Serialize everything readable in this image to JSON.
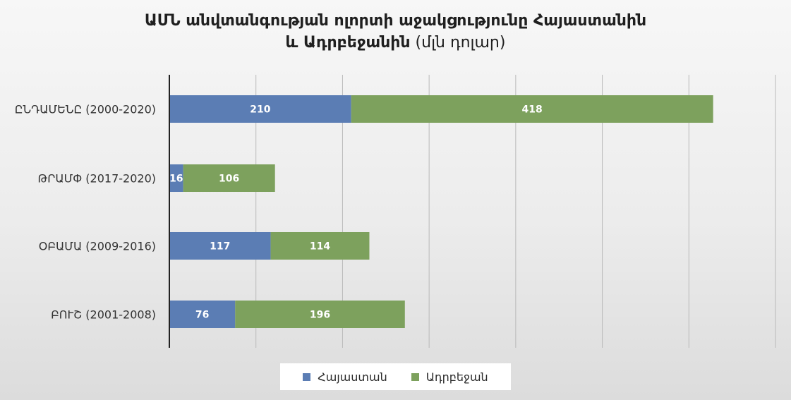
{
  "chart_data": {
    "type": "bar",
    "orientation": "horizontal",
    "stacked": true,
    "title": {
      "line1": "ԱՄՆ անվտանգության ոլորտի աջակցությունը Հայաստանին",
      "line2_bold": "և Ադրբեջանին",
      "line2_unit": "(մլն դոլար)"
    },
    "categories": [
      "ԸՆԴԱՄԵՆԸ (2000-2020)",
      "ԹՐԱՄՓ (2017-2020)",
      "ՕԲԱՄԱ (2009-2016)",
      "ԲՈՒՇ (2001-2008)"
    ],
    "series": [
      {
        "name": "Հայաստան",
        "color": "#5b7db4",
        "values": [
          210,
          16,
          117,
          76
        ]
      },
      {
        "name": "Ադրբեջան",
        "color": "#7da15d",
        "values": [
          418,
          106,
          114,
          196
        ]
      }
    ],
    "xlim": [
      0,
      700
    ],
    "x_gridline_step": 100,
    "grid": true,
    "x_tick_labels": false,
    "data_labels": true,
    "legend_position": "bottom"
  }
}
